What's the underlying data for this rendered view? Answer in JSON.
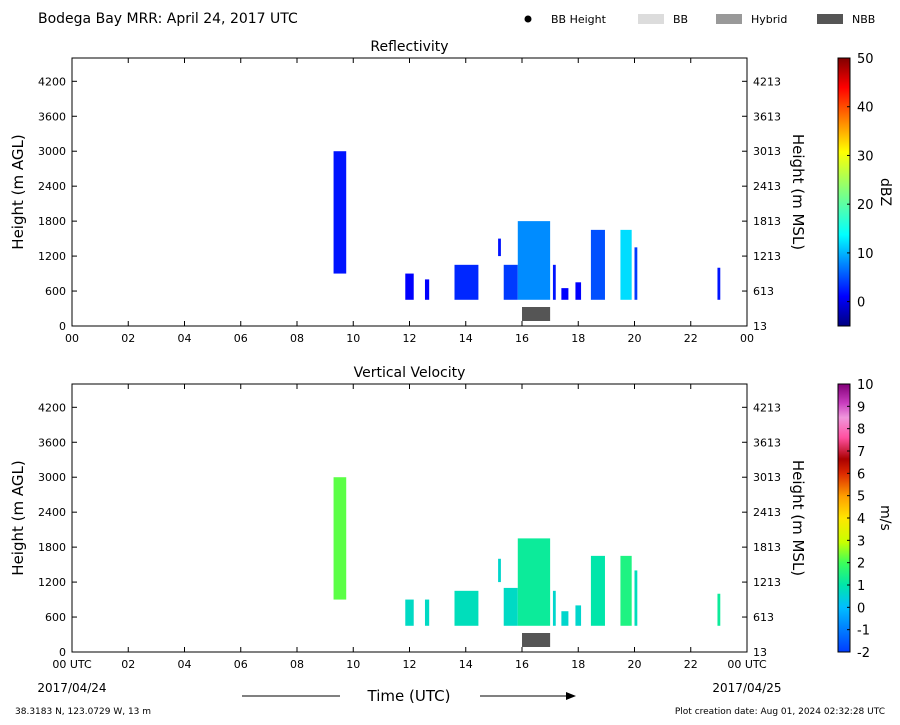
{
  "header": {
    "title": "Bodega Bay MRR:  April 24, 2017 UTC",
    "legend": [
      {
        "label": "BB Height",
        "marker": "dot",
        "color": "#000000"
      },
      {
        "label": "BB",
        "marker": "box",
        "color": "#dcdcdc"
      },
      {
        "label": "Hybrid",
        "marker": "box",
        "color": "#999999"
      },
      {
        "label": "NBB",
        "marker": "box",
        "color": "#555555"
      }
    ]
  },
  "footer": {
    "location": "38.3183 N, 123.0729 W, 13 m",
    "creation_date": "Plot creation date: Aug 01, 2024 02:32:28 UTC",
    "xlabel": "Time (UTC)",
    "start_date": "2017/04/24",
    "end_date": "2017/04/25"
  },
  "chart_data": [
    {
      "type": "heatmap",
      "title": "Reflectivity",
      "ylabel_left": "Height (m AGL)",
      "ylabel_right": "Height (m MSL)",
      "xlim": [
        0,
        24
      ],
      "ylim": [
        0,
        4600
      ],
      "x_ticks": [
        "00",
        "02",
        "04",
        "06",
        "08",
        "10",
        "12",
        "14",
        "16",
        "18",
        "20",
        "22",
        "00"
      ],
      "y_ticks_left": [
        0,
        600,
        1200,
        1800,
        2400,
        3000,
        3600,
        4200
      ],
      "y_ticks_right": [
        13,
        613,
        1213,
        1813,
        2413,
        3013,
        3613,
        4213
      ],
      "colorbar": {
        "label": "dBZ",
        "range": [
          -5,
          50
        ],
        "ticks": [
          0,
          10,
          20,
          30,
          40,
          50
        ],
        "colormap": "jet"
      },
      "echoes": [
        {
          "start": 9.3,
          "end": 9.75,
          "bottom": 900,
          "top": 3000,
          "value": 2
        },
        {
          "start": 11.85,
          "end": 12.15,
          "bottom": 450,
          "top": 900,
          "value": 1
        },
        {
          "start": 12.55,
          "end": 12.7,
          "bottom": 450,
          "top": 800,
          "value": 1
        },
        {
          "start": 13.6,
          "end": 14.45,
          "bottom": 450,
          "top": 1050,
          "value": 3
        },
        {
          "start": 15.15,
          "end": 15.25,
          "bottom": 1200,
          "top": 1500,
          "value": 2
        },
        {
          "start": 15.35,
          "end": 15.85,
          "bottom": 450,
          "top": 1050,
          "value": 4
        },
        {
          "start": 15.85,
          "end": 17.0,
          "bottom": 450,
          "top": 1800,
          "value": 8
        },
        {
          "start": 17.1,
          "end": 17.2,
          "bottom": 450,
          "top": 1050,
          "value": 2
        },
        {
          "start": 17.4,
          "end": 17.65,
          "bottom": 450,
          "top": 650,
          "value": 1
        },
        {
          "start": 17.9,
          "end": 18.1,
          "bottom": 450,
          "top": 750,
          "value": 1
        },
        {
          "start": 18.45,
          "end": 18.95,
          "bottom": 450,
          "top": 1650,
          "value": 5
        },
        {
          "start": 19.5,
          "end": 19.9,
          "bottom": 450,
          "top": 1650,
          "value": 12
        },
        {
          "start": 20.0,
          "end": 20.1,
          "bottom": 450,
          "top": 1350,
          "value": 4
        },
        {
          "start": 22.95,
          "end": 23.05,
          "bottom": 450,
          "top": 1000,
          "value": 2
        }
      ],
      "brightband": [
        {
          "start": 16.0,
          "end": 17.0,
          "class": "NBB"
        }
      ]
    },
    {
      "type": "heatmap",
      "title": "Vertical Velocity",
      "ylabel_left": "Height (m AGL)",
      "ylabel_right": "Height (m MSL)",
      "xlim": [
        0,
        24
      ],
      "ylim": [
        0,
        4600
      ],
      "x_ticks": [
        "00 UTC",
        "02",
        "04",
        "06",
        "08",
        "10",
        "12",
        "14",
        "16",
        "18",
        "20",
        "22",
        "00 UTC"
      ],
      "y_ticks_left": [
        0,
        600,
        1200,
        1800,
        2400,
        3000,
        3600,
        4200
      ],
      "y_ticks_right": [
        13,
        613,
        1213,
        1813,
        2413,
        3013,
        3613,
        4213
      ],
      "colorbar": {
        "label": "m/s",
        "range": [
          -2,
          10
        ],
        "ticks": [
          -2,
          -1,
          0,
          1,
          2,
          3,
          4,
          5,
          6,
          7,
          8,
          9,
          10
        ],
        "colormap": "velocity"
      },
      "echoes": [
        {
          "start": 9.3,
          "end": 9.75,
          "bottom": 900,
          "top": 3000,
          "value": 2.2
        },
        {
          "start": 11.85,
          "end": 12.15,
          "bottom": 450,
          "top": 900,
          "value": 0.7
        },
        {
          "start": 12.55,
          "end": 12.7,
          "bottom": 450,
          "top": 900,
          "value": 0.7
        },
        {
          "start": 13.6,
          "end": 14.45,
          "bottom": 450,
          "top": 1050,
          "value": 0.8
        },
        {
          "start": 15.15,
          "end": 15.25,
          "bottom": 1200,
          "top": 1600,
          "value": 0.6
        },
        {
          "start": 15.35,
          "end": 15.85,
          "bottom": 450,
          "top": 1100,
          "value": 0.7
        },
        {
          "start": 15.85,
          "end": 17.0,
          "bottom": 450,
          "top": 1950,
          "value": 1.2
        },
        {
          "start": 17.1,
          "end": 17.2,
          "bottom": 450,
          "top": 1050,
          "value": 0.6
        },
        {
          "start": 17.4,
          "end": 17.65,
          "bottom": 450,
          "top": 700,
          "value": 0.6
        },
        {
          "start": 17.9,
          "end": 18.1,
          "bottom": 450,
          "top": 800,
          "value": 0.6
        },
        {
          "start": 18.45,
          "end": 18.95,
          "bottom": 450,
          "top": 1650,
          "value": 1.0
        },
        {
          "start": 19.5,
          "end": 19.9,
          "bottom": 450,
          "top": 1650,
          "value": 1.5
        },
        {
          "start": 20.0,
          "end": 20.1,
          "bottom": 450,
          "top": 1400,
          "value": 0.8
        },
        {
          "start": 22.95,
          "end": 23.05,
          "bottom": 450,
          "top": 1000,
          "value": 1.2
        }
      ],
      "brightband": [
        {
          "start": 16.0,
          "end": 17.0,
          "class": "NBB"
        }
      ]
    }
  ]
}
